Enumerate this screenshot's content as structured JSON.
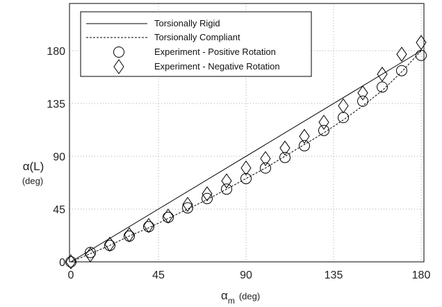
{
  "chart_data": {
    "type": "line",
    "xlabel": {
      "symbol": "α",
      "subscript": "m",
      "unit": "(deg)"
    },
    "ylabel": {
      "main": "α(L)",
      "unit": "(deg)"
    },
    "xlim": [
      0,
      180
    ],
    "ylim": [
      0,
      205
    ],
    "xticks": [
      0,
      45,
      90,
      135,
      180
    ],
    "yticks": [
      0,
      45,
      90,
      135,
      180
    ],
    "grid": true,
    "legend_position": "top-left",
    "series": [
      {
        "name": "Torsionally Rigid",
        "style": "solid",
        "color": "#000000",
        "x": [
          0,
          180
        ],
        "y": [
          0,
          180
        ]
      },
      {
        "name": "Torsionally Compliant",
        "style": "dashed",
        "color": "#000000",
        "x": [
          0,
          10,
          20,
          30,
          40,
          50,
          60,
          70,
          80,
          90,
          100,
          110,
          120,
          130,
          140,
          150,
          160,
          170,
          180
        ],
        "y": [
          0,
          7,
          14,
          22,
          29,
          37,
          45,
          53,
          62,
          71,
          80,
          90,
          100,
          110,
          121,
          133,
          146,
          162,
          180
        ]
      },
      {
        "name": "Experiment - Positive Rotation",
        "marker": "circle",
        "color": "#000000",
        "x": [
          0,
          10,
          20,
          30,
          40,
          50,
          60,
          70,
          80,
          90,
          100,
          110,
          120,
          130,
          140,
          150,
          160,
          170,
          180
        ],
        "y": [
          0,
          8,
          14,
          22,
          30,
          38,
          46,
          54,
          62,
          71,
          80,
          89,
          99,
          112,
          123,
          137,
          149,
          163,
          176
        ]
      },
      {
        "name": "Experiment - Negative Rotation",
        "marker": "diamond",
        "color": "#000000",
        "x": [
          0,
          10,
          20,
          30,
          40,
          50,
          60,
          70,
          80,
          90,
          100,
          110,
          120,
          130,
          140,
          150,
          160,
          170,
          180
        ],
        "y": [
          0,
          6,
          15,
          23,
          31,
          39,
          49,
          58,
          69,
          80,
          88,
          97,
          107,
          119,
          133,
          144,
          160,
          177,
          187
        ]
      }
    ]
  }
}
